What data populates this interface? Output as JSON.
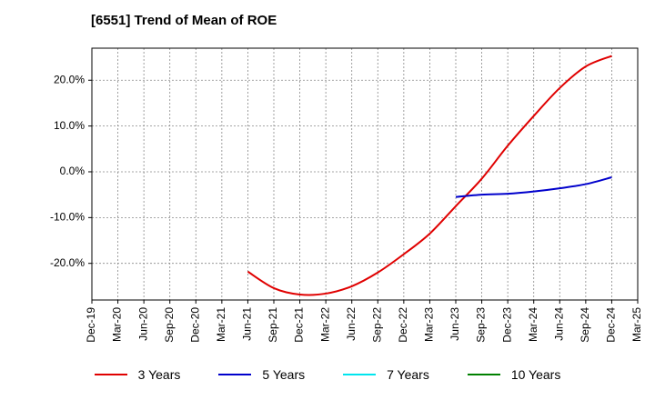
{
  "chart_data": {
    "type": "line",
    "title": "[6551]  Trend of Mean of ROE",
    "x_categories": [
      "Dec-19",
      "Mar-20",
      "Jun-20",
      "Sep-20",
      "Dec-20",
      "Mar-21",
      "Jun-21",
      "Sep-21",
      "Dec-21",
      "Mar-22",
      "Jun-22",
      "Sep-22",
      "Dec-22",
      "Mar-23",
      "Jun-23",
      "Sep-23",
      "Dec-23",
      "Mar-24",
      "Jun-24",
      "Sep-24",
      "Dec-24",
      "Mar-25"
    ],
    "y_ticks": [
      20,
      10,
      0,
      -10,
      -20
    ],
    "y_tick_labels": [
      "20.0%",
      "10.0%",
      "0.0%",
      "-10.0%",
      "-20.0%"
    ],
    "ylim": [
      -28,
      27
    ],
    "grid": true,
    "legend_position": "bottom",
    "series": [
      {
        "name": "3 Years",
        "color": "#e00000",
        "x": [
          "Jun-21",
          "Sep-21",
          "Dec-21",
          "Mar-22",
          "Jun-22",
          "Sep-22",
          "Dec-22",
          "Mar-23",
          "Jun-23",
          "Sep-23",
          "Dec-23",
          "Mar-24",
          "Jun-24",
          "Sep-24",
          "Dec-24"
        ],
        "values": [
          -21.8,
          -25.4,
          -26.8,
          -26.6,
          -25.0,
          -22.0,
          -18.0,
          -13.5,
          -7.5,
          -1.5,
          5.7,
          12.2,
          18.3,
          23.0,
          25.3
        ]
      },
      {
        "name": "5 Years",
        "color": "#0000cc",
        "x": [
          "Jun-23",
          "Sep-23",
          "Dec-23",
          "Mar-24",
          "Jun-24",
          "Sep-24",
          "Dec-24"
        ],
        "values": [
          -5.5,
          -5.0,
          -4.8,
          -4.3,
          -3.6,
          -2.7,
          -1.2
        ]
      },
      {
        "name": "7 Years",
        "color": "#00e5ee",
        "x": [],
        "values": []
      },
      {
        "name": "10 Years",
        "color": "#008000",
        "x": [],
        "values": []
      }
    ]
  }
}
